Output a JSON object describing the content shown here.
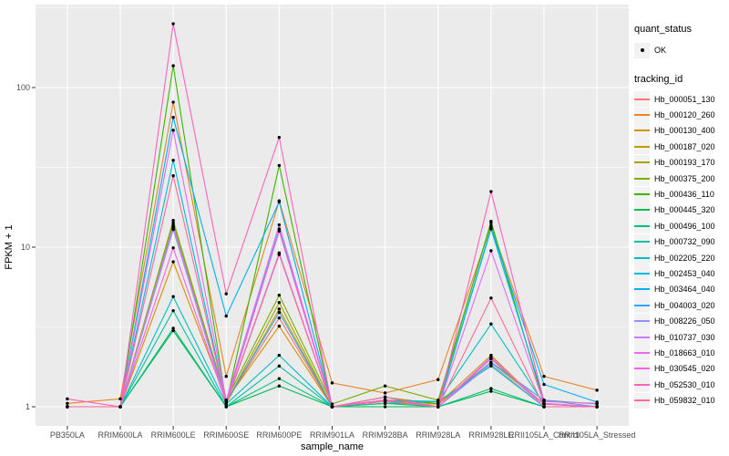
{
  "figure": {
    "background": "#FFFFFF",
    "panel_background": "#EBEBEB",
    "grid_color": "#FFFFFF",
    "axis_text_color": "#4D4D4D",
    "axis_title_color": "#000000",
    "point_color": "#000000"
  },
  "chart_data": {
    "type": "line",
    "title": "",
    "xlabel": "sample_name",
    "ylabel": "FPKM + 1",
    "y_scale": "log10",
    "grid": true,
    "legend_position": "right",
    "y_ticks": [
      1,
      10,
      100
    ],
    "y_tick_labels": [
      "1",
      "10",
      "100"
    ],
    "y_minor_ticks": [
      3.162,
      31.62,
      316.2
    ],
    "ylim": [
      0.78,
      330
    ],
    "categories": [
      "PB350LA",
      "RRIM600LA",
      "RRIM600LE",
      "RRIM600SE",
      "RRIM600PE",
      "RRIM901LA",
      "RRIM928BA",
      "RRIM928LA",
      "RRIM928LE",
      "RRII105LA_Control",
      "RRII105LA_Stressed"
    ],
    "series": [
      {
        "name": "Hb_000051_130",
        "color": "#F8766D",
        "values": [
          1.0,
          1.0,
          13.2,
          1.08,
          3.6,
          1.0,
          1.08,
          1.0,
          2.0,
          1.04,
          1.0
        ]
      },
      {
        "name": "Hb_000120_260",
        "color": "#E88526",
        "values": [
          1.05,
          1.12,
          81.0,
          1.55,
          19.5,
          1.41,
          1.22,
          1.48,
          13.6,
          1.55,
          1.27
        ]
      },
      {
        "name": "Hb_000130_400",
        "color": "#D89000",
        "values": [
          1.0,
          1.0,
          8.1,
          1.1,
          3.2,
          1.0,
          1.05,
          1.04,
          2.1,
          1.0,
          1.0
        ]
      },
      {
        "name": "Hb_000187_020",
        "color": "#C09B00",
        "values": [
          1.0,
          1.0,
          13.8,
          1.05,
          4.1,
          1.0,
          1.1,
          1.0,
          2.0,
          1.0,
          1.0
        ]
      },
      {
        "name": "Hb_000193_170",
        "color": "#A3A500",
        "values": [
          1.0,
          1.0,
          14.2,
          1.06,
          4.5,
          1.0,
          1.15,
          1.04,
          1.9,
          1.04,
          1.0
        ]
      },
      {
        "name": "Hb_000375_200",
        "color": "#7CAE00",
        "values": [
          1.0,
          1.0,
          14.7,
          1.1,
          5.0,
          1.04,
          1.35,
          1.1,
          14.2,
          1.05,
          1.0
        ]
      },
      {
        "name": "Hb_000436_110",
        "color": "#39B600",
        "values": [
          1.0,
          1.0,
          137.0,
          1.05,
          32.5,
          1.0,
          1.1,
          1.05,
          14.5,
          1.04,
          1.0
        ]
      },
      {
        "name": "Hb_000445_320",
        "color": "#00BB4E",
        "values": [
          1.0,
          1.0,
          3.0,
          1.0,
          1.35,
          1.0,
          1.0,
          1.0,
          1.25,
          1.0,
          1.0
        ]
      },
      {
        "name": "Hb_000496_100",
        "color": "#00BF7D",
        "values": [
          1.0,
          1.0,
          3.1,
          1.0,
          1.5,
          1.0,
          1.05,
          1.0,
          1.3,
          1.0,
          1.0
        ]
      },
      {
        "name": "Hb_000732_090",
        "color": "#00C1A3",
        "values": [
          1.0,
          1.0,
          4.0,
          1.0,
          1.8,
          1.0,
          1.05,
          1.08,
          1.8,
          1.0,
          1.0
        ]
      },
      {
        "name": "Hb_002205_220",
        "color": "#00BFC4",
        "values": [
          1.0,
          1.0,
          4.9,
          1.04,
          2.1,
          1.0,
          1.1,
          1.08,
          3.3,
          1.04,
          1.0
        ]
      },
      {
        "name": "Hb_002453_040",
        "color": "#00BAE0",
        "values": [
          1.0,
          1.0,
          35.0,
          1.06,
          13.0,
          1.0,
          1.1,
          1.0,
          13.0,
          1.1,
          1.04
        ]
      },
      {
        "name": "Hb_003464_040",
        "color": "#00B0F6",
        "values": [
          1.0,
          1.0,
          65.0,
          3.7,
          19.2,
          1.0,
          1.1,
          1.0,
          13.2,
          1.38,
          1.07
        ]
      },
      {
        "name": "Hb_004003_020",
        "color": "#35A2FF",
        "values": [
          1.0,
          1.0,
          13.0,
          1.08,
          3.9,
          1.0,
          1.15,
          1.0,
          1.9,
          1.1,
          1.0
        ]
      },
      {
        "name": "Hb_008226_050",
        "color": "#9590FF",
        "values": [
          1.0,
          1.0,
          12.9,
          1.04,
          9.0,
          1.0,
          1.1,
          1.0,
          1.85,
          1.0,
          1.0
        ]
      },
      {
        "name": "Hb_010737_030",
        "color": "#C77CFF",
        "values": [
          1.0,
          1.0,
          13.5,
          1.05,
          9.2,
          1.0,
          1.1,
          1.0,
          2.05,
          1.0,
          1.0
        ]
      },
      {
        "name": "Hb_018663_010",
        "color": "#E76BF3",
        "values": [
          1.0,
          1.0,
          54.0,
          1.1,
          13.8,
          1.0,
          1.1,
          1.0,
          9.5,
          1.05,
          1.0
        ]
      },
      {
        "name": "Hb_030545_020",
        "color": "#FA62DB",
        "values": [
          1.0,
          1.0,
          9.9,
          1.05,
          12.6,
          1.0,
          1.1,
          1.0,
          2.0,
          1.04,
          1.0
        ]
      },
      {
        "name": "Hb_052530_010",
        "color": "#FF62BC",
        "values": [
          1.12,
          1.0,
          251.0,
          5.1,
          48.7,
          1.0,
          1.1,
          1.0,
          22.3,
          1.08,
          1.05
        ]
      },
      {
        "name": "Hb_059832_010",
        "color": "#FF6A98",
        "values": [
          1.0,
          1.0,
          28.0,
          1.05,
          9.0,
          1.0,
          1.15,
          1.0,
          4.8,
          1.0,
          1.0
        ]
      }
    ]
  },
  "legend": {
    "quant_status": {
      "title": "quant_status",
      "items": [
        {
          "label": "OK",
          "shape": "point"
        }
      ]
    },
    "tracking_id": {
      "title": "tracking_id"
    }
  }
}
